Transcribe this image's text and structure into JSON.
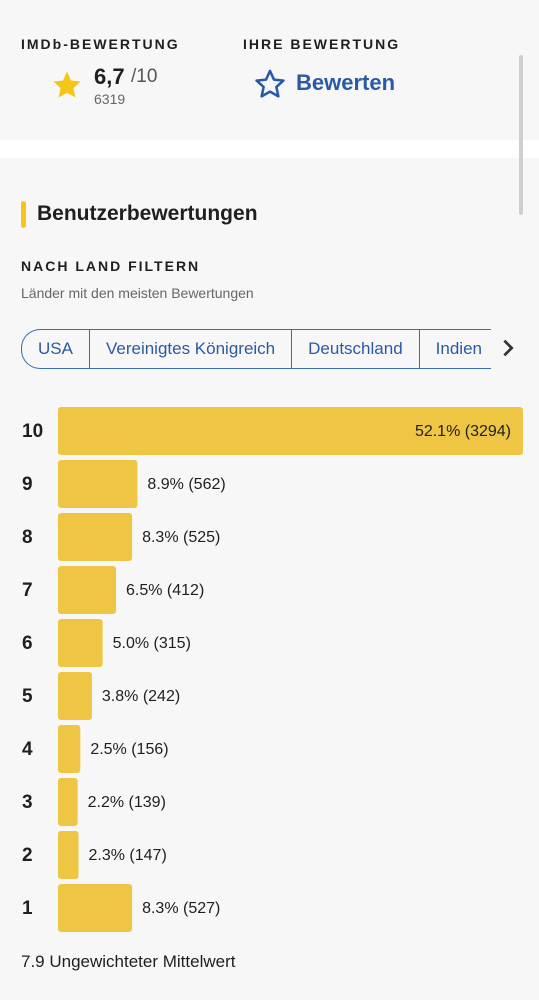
{
  "header": {
    "imdb_label": "IMDb-BEWERTUNG",
    "rating": "6,7",
    "rating_max": "/10",
    "rating_count": "6319",
    "your_label": "IHRE BEWERTUNG",
    "rate_button": "Bewerten"
  },
  "section": {
    "title": "Benutzerbewertungen",
    "filter_title": "NACH LAND FILTERN",
    "filter_subtitle": "Länder mit den meisten Bewertungen",
    "chips": [
      "USA",
      "Vereinigtes Königreich",
      "Deutschland",
      "Indien"
    ]
  },
  "chart_data": {
    "type": "bar",
    "orientation": "horizontal",
    "color": "#eec643",
    "categories": [
      "10",
      "9",
      "8",
      "7",
      "6",
      "5",
      "4",
      "3",
      "2",
      "1"
    ],
    "values": [
      52.1,
      8.9,
      8.3,
      6.5,
      5.0,
      3.8,
      2.5,
      2.2,
      2.3,
      8.3
    ],
    "value_labels": [
      "52.1% (3294)",
      "8.9% (562)",
      "8.3% (525)",
      "6.5% (412)",
      "5.0% (315)",
      "3.8% (242)",
      "2.5% (156)",
      "2.2% (139)",
      "2.3% (147)",
      "8.3% (527)"
    ]
  },
  "footer": {
    "mean": "7.9 Ungewichteter Mittelwert"
  }
}
